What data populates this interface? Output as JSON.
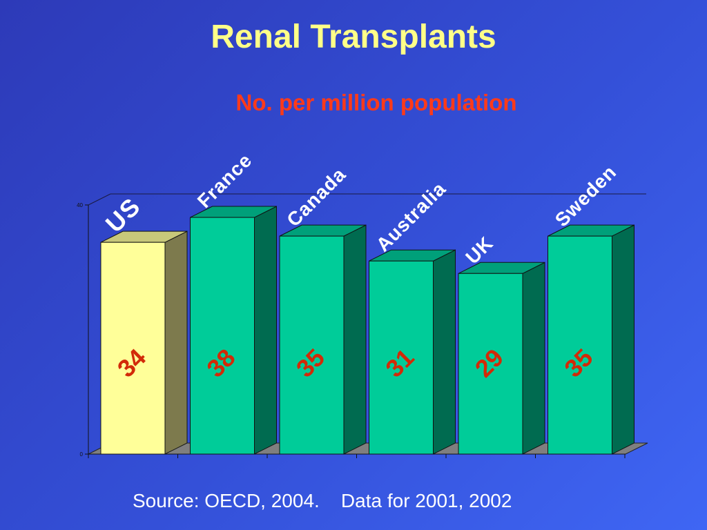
{
  "title": "Renal Transplants",
  "subtitle": "No. per million population",
  "source": "Source: OECD, 2004.    Data for 2001, 2002",
  "colors": {
    "highlight_front": "#ffff99",
    "highlight_top": "#c8c87a",
    "highlight_side": "#7d7a4d",
    "bar_front": "#00cc99",
    "bar_top": "#00a07a",
    "bar_side": "#006b50",
    "category_label": "#ffffff",
    "value_label": "#d22a08"
  },
  "chart_data": {
    "type": "bar",
    "title": "No. per million population",
    "categories": [
      "US",
      "France",
      "Canada",
      "Australia",
      "UK",
      "Sweden"
    ],
    "values": [
      34,
      38,
      35,
      31,
      29,
      35
    ],
    "highlighted": "US",
    "ylim": [
      0,
      40
    ],
    "yticks": [
      "0",
      "40"
    ],
    "grid": false,
    "three_d": true
  }
}
